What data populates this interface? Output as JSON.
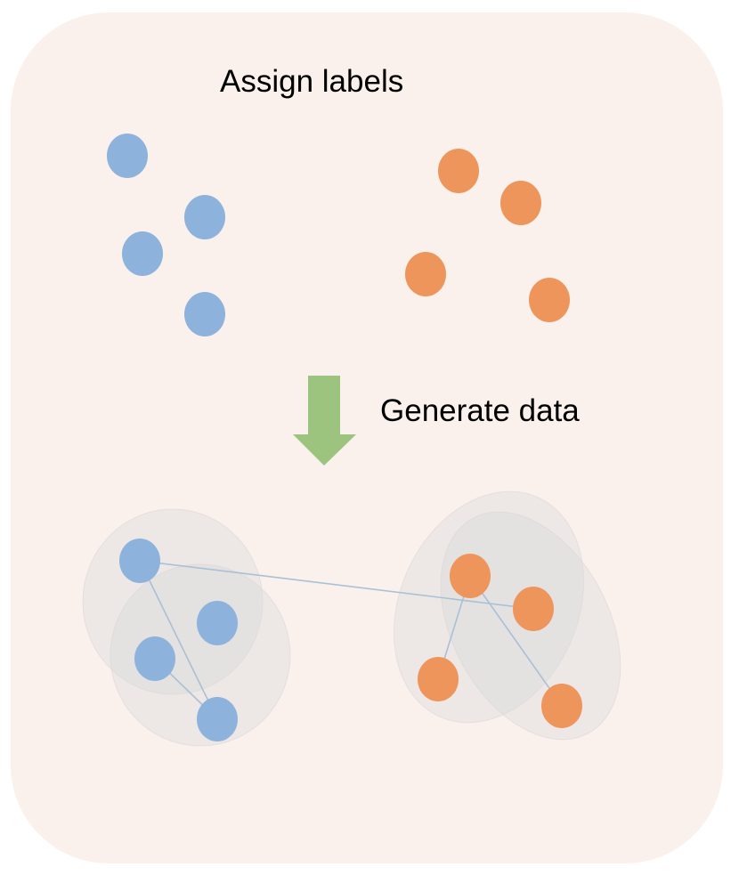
{
  "labels": {
    "top": "Assign labels",
    "middle": "Generate data"
  },
  "colors": {
    "panel": "#fbf1ec",
    "class_a": "#8db2dc",
    "class_b": "#ee955c",
    "arrow": "#9cc47f",
    "cluster": "#d9dadb",
    "edge": "#a9c0d6"
  }
}
